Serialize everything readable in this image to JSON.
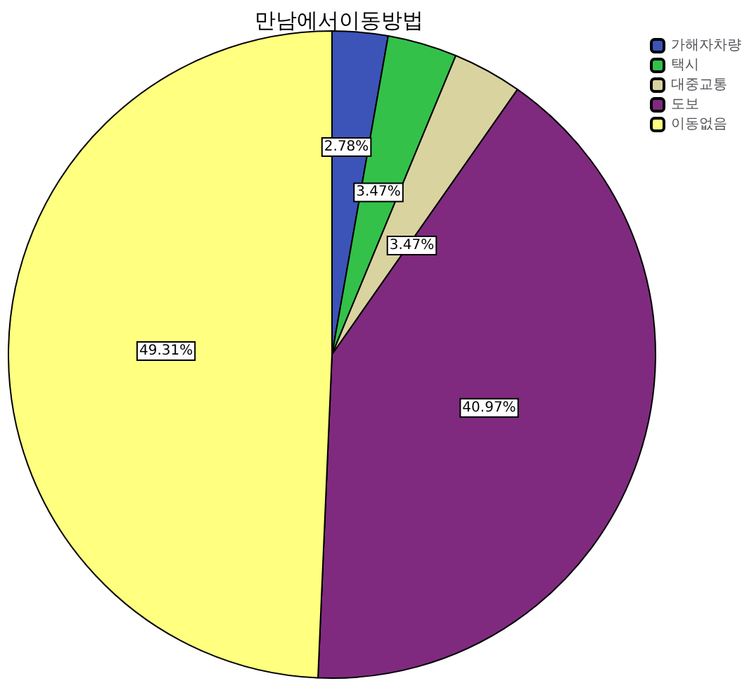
{
  "chart_data": {
    "type": "pie",
    "title": "만남에서이동방법",
    "categories": [
      "가해자차량",
      "택시",
      "대중교통",
      "도보",
      "이동없음"
    ],
    "values": [
      2.78,
      3.47,
      3.47,
      40.97,
      49.31
    ],
    "colors": [
      "#3c53b8",
      "#33c14a",
      "#d9d3a0",
      "#7f2a7f",
      "#ffff80"
    ],
    "value_labels": [
      "2.78%",
      "3.47%",
      "3.47%",
      "40.97%",
      "49.31%"
    ],
    "legend": "top right"
  }
}
